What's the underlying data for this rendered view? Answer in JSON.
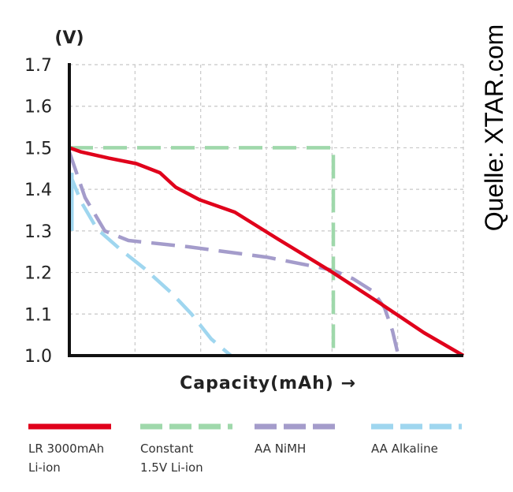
{
  "chart_data": {
    "type": "line",
    "title": "",
    "ylabel": "(V)",
    "xlabel": "Capacity(mAh) →",
    "source": "Quelle: XTAR.com",
    "ylim": [
      1.0,
      1.7
    ],
    "xlim": [
      0,
      100
    ],
    "y_ticks": [
      "1.7",
      "1.6",
      "1.5",
      "1.4",
      "1.3",
      "1.2",
      "1.1",
      "1.0"
    ],
    "grid": true,
    "legend_position": "bottom",
    "series": [
      {
        "name": "LR 3000mAh Li-ion",
        "legend_lines": [
          "LR 3000mAh",
          "Li-ion"
        ],
        "color": "#e0001b",
        "style": "solid",
        "points": [
          [
            0,
            1.5
          ],
          [
            3,
            1.49
          ],
          [
            10,
            1.475
          ],
          [
            17,
            1.462
          ],
          [
            23,
            1.44
          ],
          [
            27,
            1.405
          ],
          [
            33,
            1.375
          ],
          [
            42,
            1.345
          ],
          [
            53,
            1.28
          ],
          [
            66,
            1.205
          ],
          [
            79,
            1.125
          ],
          [
            90,
            1.055
          ],
          [
            100,
            1.0
          ]
        ]
      },
      {
        "name": "Constant 1.5V Li-ion",
        "legend_lines": [
          "Constant",
          "1.5V Li-ion"
        ],
        "color": "#9fd8ab",
        "style": "dashed",
        "points": [
          [
            0,
            1.5
          ],
          [
            67,
            1.5
          ],
          [
            67,
            1.0
          ]
        ]
      },
      {
        "name": "AA NiMH",
        "legend_lines": [
          "AA NiMH"
        ],
        "color": "#a49ccb",
        "style": "dashed",
        "points": [
          [
            0,
            1.49
          ],
          [
            4,
            1.38
          ],
          [
            9,
            1.3
          ],
          [
            15,
            1.277
          ],
          [
            30,
            1.262
          ],
          [
            50,
            1.237
          ],
          [
            62,
            1.215
          ],
          [
            67,
            1.205
          ],
          [
            72,
            1.185
          ],
          [
            77,
            1.155
          ],
          [
            80,
            1.115
          ],
          [
            82,
            1.06
          ],
          [
            83.5,
            1.0
          ]
        ]
      },
      {
        "name": "AA Alkaline",
        "legend_lines": [
          "AA Alkaline"
        ],
        "color": "#9fd6ef",
        "style": "dashed",
        "points": [
          [
            0,
            1.44
          ],
          [
            3,
            1.37
          ],
          [
            7,
            1.305
          ],
          [
            13,
            1.255
          ],
          [
            19,
            1.21
          ],
          [
            26,
            1.15
          ],
          [
            31,
            1.1
          ],
          [
            36,
            1.04
          ],
          [
            41,
            1.0
          ]
        ]
      }
    ],
    "extra_segments": [
      {
        "series": "AA Alkaline",
        "points": [
          [
            0.7,
            1.44
          ],
          [
            0.7,
            1.3
          ]
        ]
      }
    ]
  }
}
